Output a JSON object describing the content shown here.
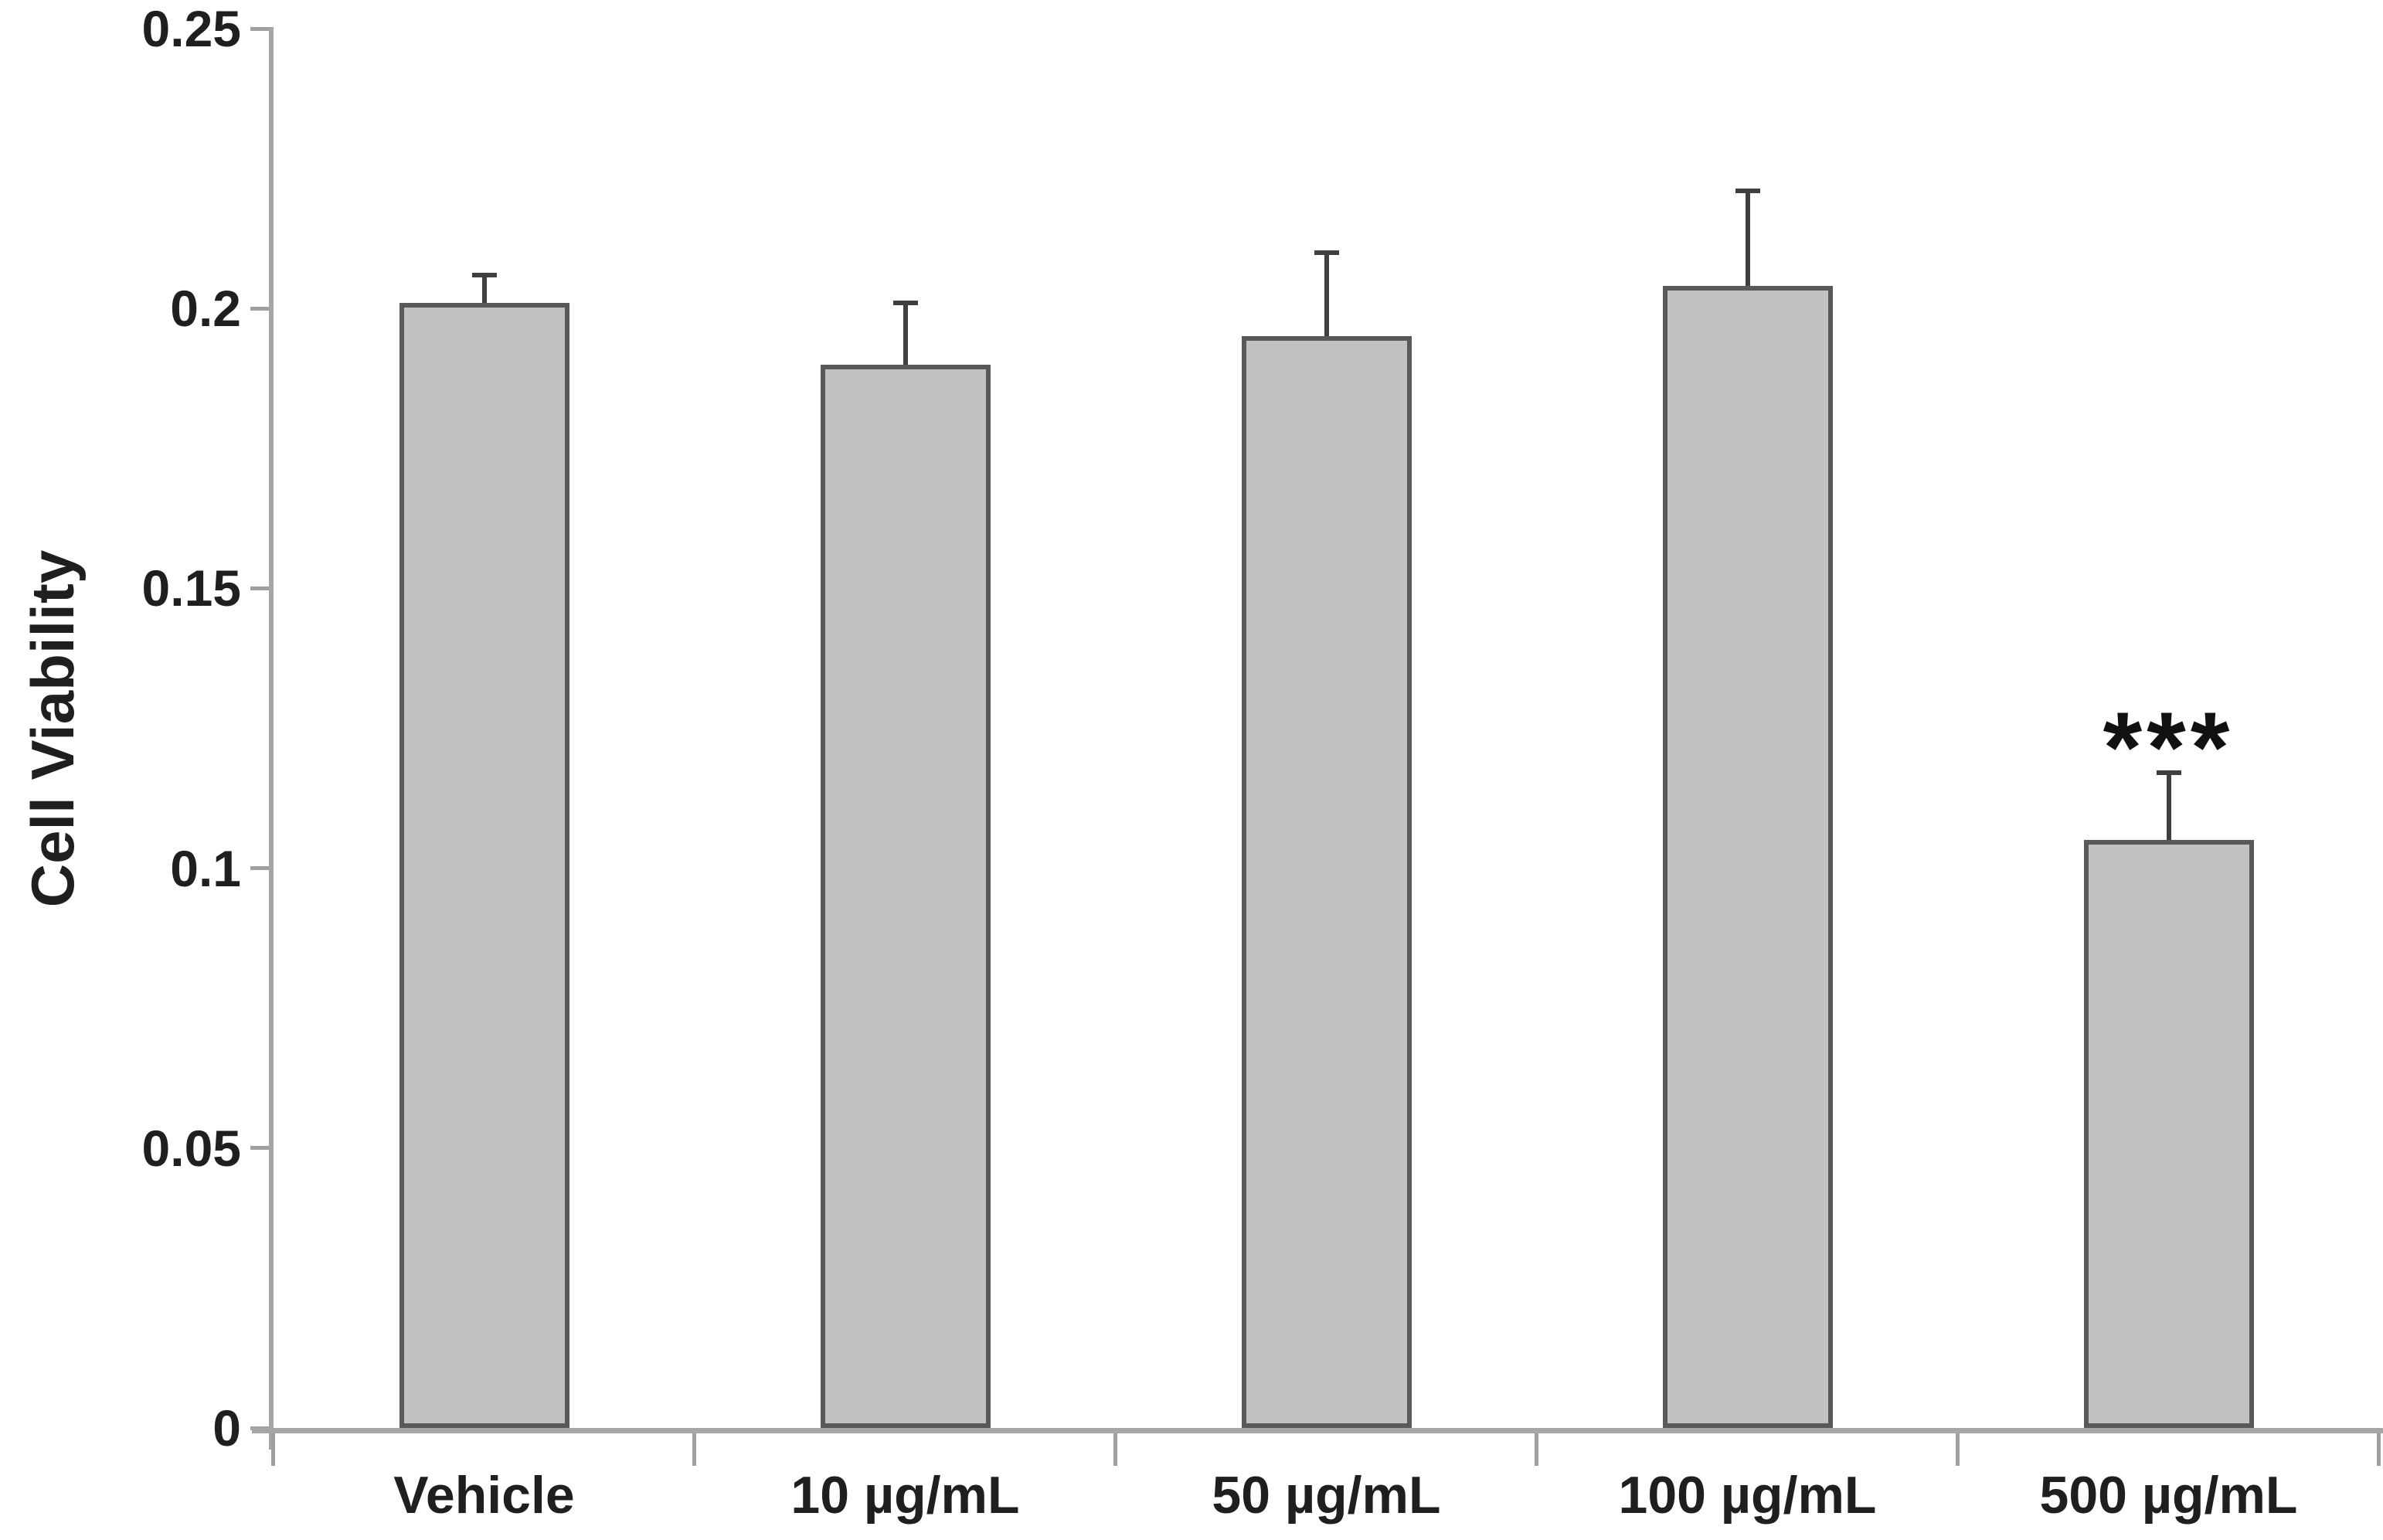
{
  "chart_data": {
    "type": "bar",
    "categories": [
      "Vehicle",
      "10 µg/mL",
      "50 µg/mL",
      "100 µg/mL",
      "500 µg/mL"
    ],
    "values": [
      0.201,
      0.19,
      0.195,
      0.204,
      0.105
    ],
    "errors_plus": [
      0.005,
      0.011,
      0.015,
      0.017,
      0.012
    ],
    "significance": [
      "",
      "",
      "",
      "",
      "***"
    ],
    "ylabel": "Cell Viability",
    "xlabel": "",
    "ylim": [
      0,
      0.25
    ],
    "ytick_values": [
      0,
      0.05,
      0.1,
      0.15,
      0.2,
      0.25
    ],
    "ytick_labels": [
      "0",
      "0.05",
      "0.1",
      "0.15",
      "0.2",
      "0.25"
    ],
    "grid": false,
    "legend": false,
    "colors": {
      "bar_fill": "#c2c2c2",
      "bar_border": "#595959",
      "error_bar": "#3f3f3f",
      "axis_line": "#a6a6a6",
      "tick_mark": "#a0a0a0",
      "text": "#1f1f1f"
    }
  }
}
